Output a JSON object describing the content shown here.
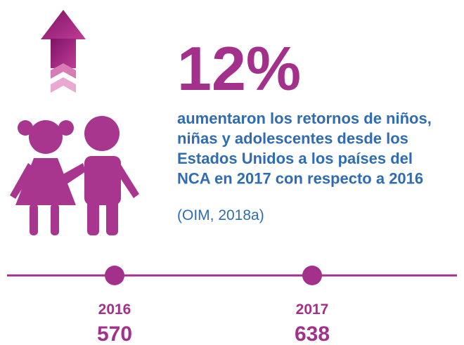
{
  "headline": "12%",
  "description": [
    "aumentaron los retornos de niños,",
    "niñas y adolescentes desde los",
    "Estados Unidos a los países del",
    "NCA en 2017 con respecto a 2016"
  ],
  "source": "(OIM, 2018a)",
  "timeline": [
    {
      "year": "2016",
      "value": "570"
    },
    {
      "year": "2017",
      "value": "638"
    }
  ]
}
